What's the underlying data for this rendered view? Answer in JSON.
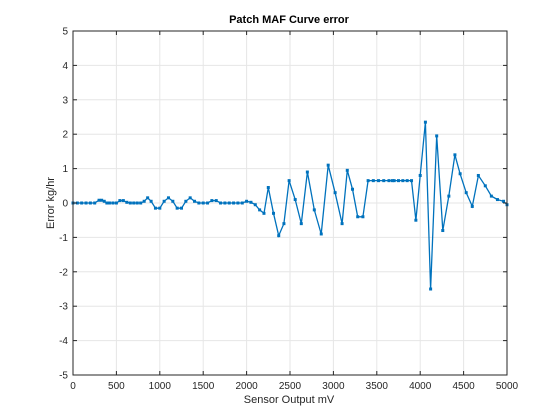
{
  "chart_data": {
    "type": "line",
    "title": "Patch MAF Curve error",
    "xlabel": "Sensor Output mV",
    "ylabel": "Error kg/hr",
    "xlim": [
      0,
      5000
    ],
    "ylim": [
      -5,
      5
    ],
    "xticks": [
      0,
      500,
      1000,
      1500,
      2000,
      2500,
      3000,
      3500,
      4000,
      4500,
      5000
    ],
    "yticks": [
      -5,
      -4,
      -3,
      -2,
      -1,
      0,
      1,
      2,
      3,
      4,
      5
    ],
    "grid": true,
    "legend": "none",
    "series": [
      {
        "color": "#0072BD",
        "marker": "small square",
        "x": [
          0,
          50,
          100,
          150,
          200,
          250,
          300,
          330,
          360,
          390,
          420,
          460,
          500,
          540,
          580,
          620,
          660,
          700,
          740,
          780,
          820,
          860,
          900,
          950,
          1000,
          1050,
          1100,
          1150,
          1200,
          1250,
          1300,
          1350,
          1400,
          1450,
          1500,
          1550,
          1600,
          1650,
          1700,
          1750,
          1800,
          1850,
          1900,
          1950,
          2000,
          2050,
          2100,
          2150,
          2200,
          2250,
          2310,
          2370,
          2430,
          2490,
          2560,
          2630,
          2700,
          2780,
          2860,
          2940,
          3020,
          3100,
          3160,
          3220,
          3280,
          3340,
          3400,
          3460,
          3520,
          3580,
          3640,
          3680,
          3700,
          3750,
          3800,
          3850,
          3900,
          3950,
          4000,
          4060,
          4120,
          4190,
          4260,
          4330,
          4400,
          4460,
          4530,
          4600,
          4670,
          4750,
          4820,
          4890,
          4960,
          5000
        ],
        "y": [
          0,
          0,
          0,
          0,
          0,
          0,
          0.08,
          0.08,
          0.05,
          0,
          0,
          0,
          0,
          0.07,
          0.07,
          0.02,
          0,
          0,
          0,
          0,
          0.05,
          0.15,
          0.05,
          -0.15,
          -0.15,
          0.05,
          0.15,
          0.05,
          -0.15,
          -0.15,
          0.05,
          0.15,
          0.05,
          0,
          0,
          0,
          0.07,
          0.07,
          0,
          0,
          0,
          0,
          0,
          0,
          0.05,
          0.02,
          -0.05,
          -0.2,
          -0.3,
          0.45,
          -0.3,
          -0.95,
          -0.6,
          0.65,
          0.1,
          -0.6,
          0.9,
          -0.2,
          -0.9,
          1.1,
          0.3,
          -0.6,
          0.95,
          0.4,
          -0.4,
          -0.4,
          0.65,
          0.65,
          0.65,
          0.65,
          0.65,
          0.65,
          0.65,
          0.65,
          0.65,
          0.65,
          0.65,
          -0.5,
          0.8,
          2.35,
          -2.5,
          1.95,
          -0.8,
          0.2,
          1.4,
          0.85,
          0.3,
          -0.1,
          0.8,
          0.5,
          0.2,
          0.1,
          0.05,
          -0.05
        ]
      }
    ]
  }
}
